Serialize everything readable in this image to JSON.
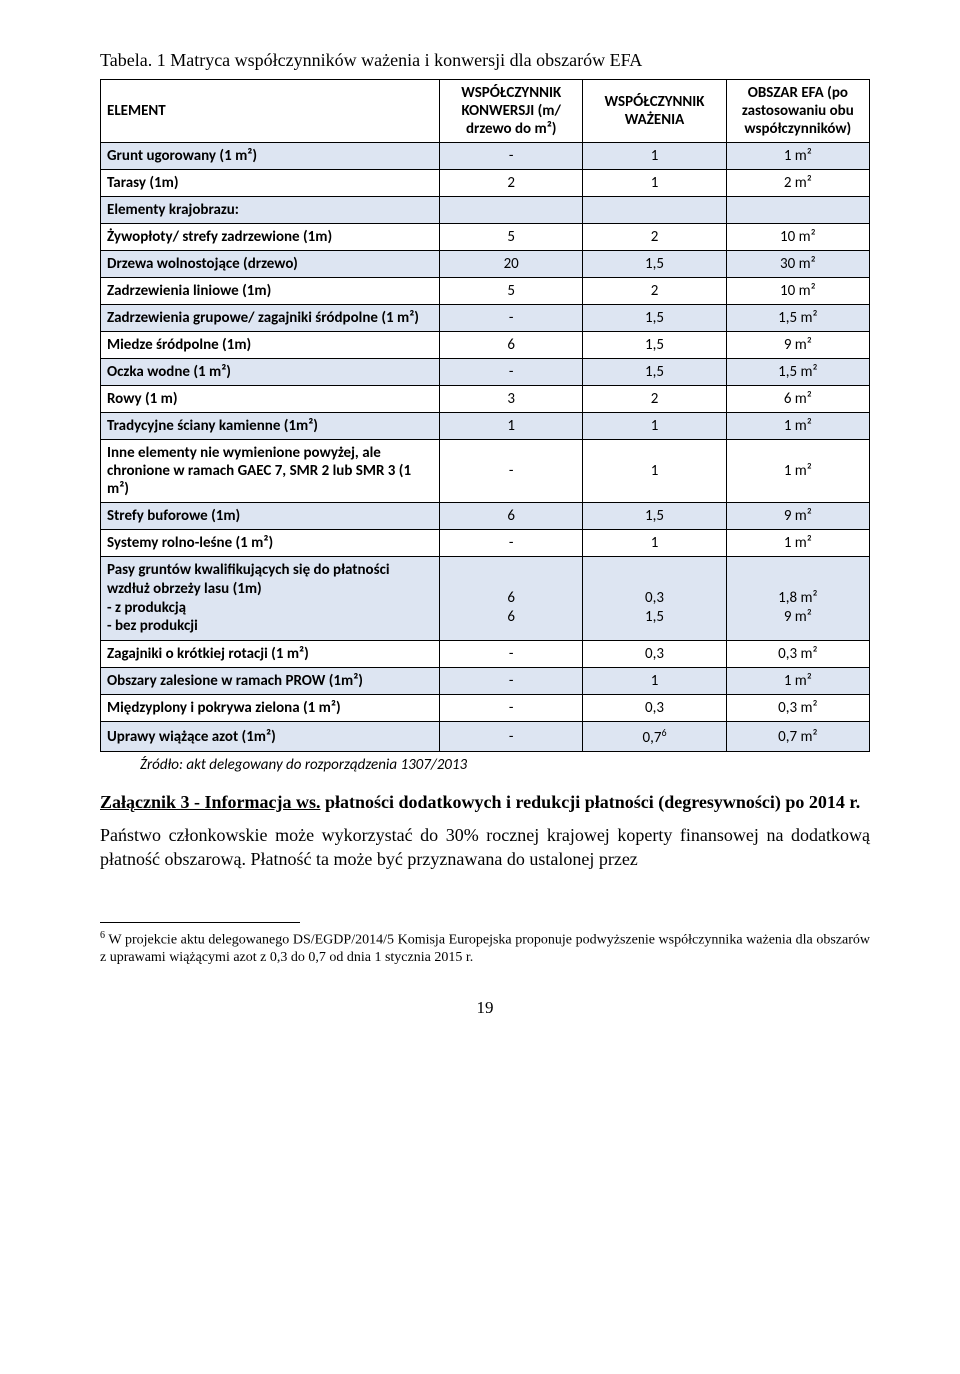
{
  "caption": "Tabela. 1 Matryca współczynników ważenia i konwersji dla obszarów EFA",
  "table": {
    "headers": [
      "ELEMENT",
      "WSPÓŁCZYNNIK KONWERSJI (m/ drzewo do m²)",
      "WSPÓŁCZYNNIK WAŻENIA",
      "OBSZAR EFA (po zastosowaniu obu współczynników)"
    ],
    "rows": [
      {
        "shade": true,
        "multi": false,
        "c": [
          "Grunt ugorowany (1 m²)",
          "-",
          "1",
          "1 m²"
        ]
      },
      {
        "shade": false,
        "multi": false,
        "c": [
          "Tarasy (1m)",
          "2",
          "1",
          "2 m²"
        ]
      },
      {
        "shade": true,
        "multi": false,
        "c": [
          "Elementy krajobrazu:",
          "",
          "",
          ""
        ]
      },
      {
        "shade": false,
        "multi": false,
        "c": [
          "Żywopłoty/ strefy zadrzewione (1m)",
          "5",
          "2",
          "10 m²"
        ]
      },
      {
        "shade": true,
        "multi": false,
        "c": [
          "Drzewa wolnostojące (drzewo)",
          "20",
          "1,5",
          "30 m²"
        ]
      },
      {
        "shade": false,
        "multi": false,
        "c": [
          "Zadrzewienia liniowe (1m)",
          "5",
          "2",
          "10 m²"
        ]
      },
      {
        "shade": true,
        "multi": true,
        "c": [
          "Zadrzewienia grupowe/ zagajniki śródpolne (1 m²)",
          "-",
          "1,5",
          "1,5 m²"
        ]
      },
      {
        "shade": false,
        "multi": false,
        "c": [
          "Miedze śródpolne (1m)",
          "6",
          "1,5",
          "9 m²"
        ]
      },
      {
        "shade": true,
        "multi": false,
        "c": [
          "Oczka wodne (1 m²)",
          "-",
          "1,5",
          "1,5 m²"
        ]
      },
      {
        "shade": false,
        "multi": false,
        "c": [
          "Rowy (1 m)",
          "3",
          "2",
          "6 m²"
        ]
      },
      {
        "shade": true,
        "multi": false,
        "c": [
          "Tradycyjne ściany kamienne (1m²)",
          "1",
          "1",
          "1 m²"
        ]
      },
      {
        "shade": false,
        "multi": true,
        "c": [
          "Inne elementy nie wymienione powyżej, ale chronione w ramach GAEC 7, SMR 2 lub SMR 3 (1 m²)",
          "-",
          "1",
          "1 m²"
        ]
      },
      {
        "shade": true,
        "multi": false,
        "c": [
          "Strefy buforowe (1m)",
          "6",
          "1,5",
          "9 m²"
        ]
      },
      {
        "shade": false,
        "multi": false,
        "c": [
          "Systemy rolno-leśne (1 m²)",
          "-",
          "1",
          "1 m²"
        ]
      },
      {
        "shade": true,
        "multi": true,
        "lines0": [
          "Pasy gruntów kwalifikujących się do płatności wzdłuż obrzeży lasu (1m)",
          "- z produkcją",
          "- bez produkcji"
        ],
        "lines1": [
          "",
          "6",
          "6"
        ],
        "lines2": [
          "",
          "0,3",
          "1,5"
        ],
        "lines3": [
          "",
          "1,8 m²",
          "9 m²"
        ]
      },
      {
        "shade": false,
        "multi": false,
        "c": [
          "Zagajniki o krótkiej rotacji (1 m²)",
          "-",
          "0,3",
          "0,3 m²"
        ]
      },
      {
        "shade": true,
        "multi": false,
        "c": [
          "Obszary zalesione w ramach PROW (1m²)",
          "-",
          "1",
          "1 m²"
        ]
      },
      {
        "shade": false,
        "multi": false,
        "c": [
          "Międzyplony i pokrywa zielona (1 m²)",
          "-",
          "0,3",
          "0,3 m²"
        ]
      },
      {
        "shade": true,
        "multi": false,
        "sup": "6",
        "c": [
          "Uprawy wiążące azot (1m²)",
          "-",
          "0,7",
          "0,7 m²"
        ]
      }
    ]
  },
  "source": "Źródło: akt delegowany do rozporządzenia 1307/2013",
  "attach_parts": {
    "p1": "Załącznik 3 - Informacja ws.",
    "p2": " płatności dodatkowych i redukcji płatności (degresywności) po 2014 r."
  },
  "paragraph": "Państwo członkowskie może wykorzystać do 30% rocznej krajowej koperty finansowej na dodatkową płatność obszarową. Płatność ta może być przyznawana do ustalonej przez",
  "footnote": {
    "mark": "6",
    "text": " W projekcie aktu delegowanego DS/EGDP/2014/5 Komisja Europejska proponuje podwyższenie współczynnika ważenia dla obszarów z uprawami wiążącymi azot z 0,3 do 0,7 od dnia 1 stycznia 2015 r."
  },
  "page_number": "19"
}
